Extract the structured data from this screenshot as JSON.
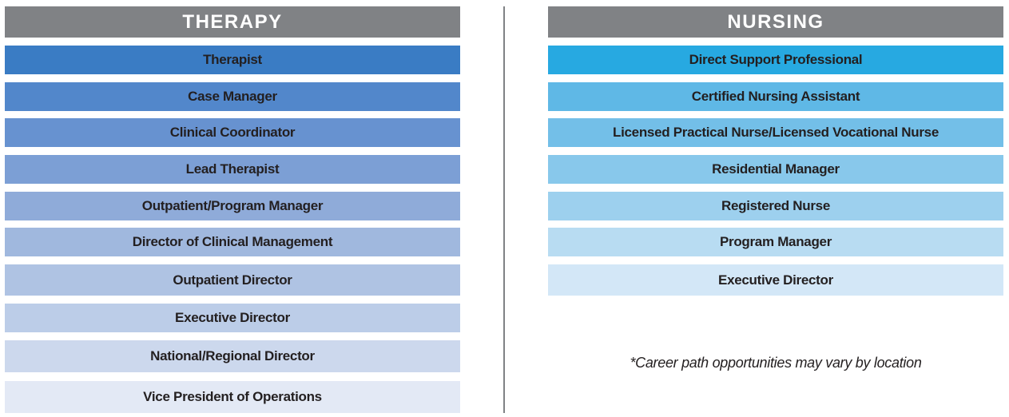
{
  "therapy": {
    "title": "THERAPY",
    "roles": [
      "Therapist",
      "Case Manager",
      "Clinical Coordinator",
      "Lead Therapist",
      "Outpatient/Program Manager",
      "Director of Clinical Management",
      "Outpatient Director",
      "Executive Director",
      "National/Regional Director",
      "Vice President of Operations"
    ]
  },
  "nursing": {
    "title": "NURSING",
    "roles": [
      "Direct Support Professional",
      "Certified Nursing Assistant",
      "Licensed Practical Nurse/Licensed Vocational Nurse",
      "Residential Manager",
      "Registered Nurse",
      "Program Manager",
      "Executive Director"
    ]
  },
  "note": "*Career path opportunities may vary by location"
}
